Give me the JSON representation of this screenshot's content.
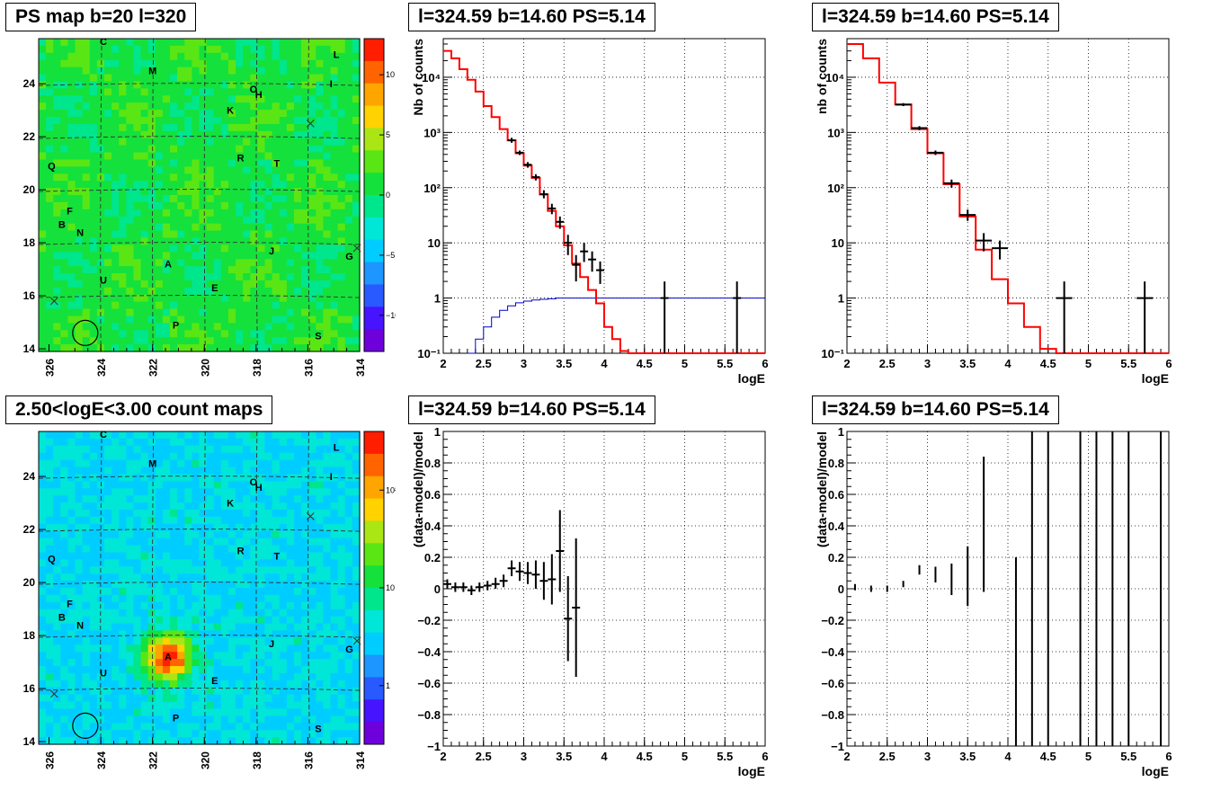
{
  "maps": [
    {
      "title": "PS map b=20 l=320",
      "type": "ps",
      "colorbar_ticks": [
        {
          "v": 10,
          "label": "10"
        },
        {
          "v": 5,
          "label": "5"
        },
        {
          "v": 0,
          "label": "0"
        },
        {
          "v": -5,
          "label": "−5"
        },
        {
          "v": -10,
          "label": "−10"
        }
      ],
      "colorbar_range": [
        -13,
        13
      ]
    },
    {
      "title": "2.50<logE<3.00 count maps",
      "type": "count",
      "colorbar_ticks": [
        {
          "v": 2,
          "label": "10²"
        },
        {
          "v": 1,
          "label": "10"
        },
        {
          "v": 0,
          "label": "1"
        }
      ],
      "colorbar_range": [
        -0.6,
        2.6
      ]
    }
  ],
  "map_axes": {
    "x_ticks": [
      "326",
      "324",
      "322",
      "320",
      "318",
      "316",
      "314"
    ],
    "y_ticks": [
      "24",
      "22",
      "20",
      "18",
      "16",
      "14"
    ]
  },
  "source_labels": [
    {
      "t": "C",
      "l": 323.9,
      "b": 25.6
    },
    {
      "t": "M",
      "l": 322.0,
      "b": 24.5
    },
    {
      "t": "L",
      "l": 314.9,
      "b": 25.1
    },
    {
      "t": "I",
      "l": 315.1,
      "b": 24.0
    },
    {
      "t": "O",
      "l": 318.1,
      "b": 23.8
    },
    {
      "t": "H",
      "l": 317.9,
      "b": 23.6
    },
    {
      "t": "K",
      "l": 319.0,
      "b": 23.0
    },
    {
      "t": "R",
      "l": 318.6,
      "b": 21.2
    },
    {
      "t": "T",
      "l": 317.2,
      "b": 21.0
    },
    {
      "t": "Q",
      "l": 325.9,
      "b": 20.9
    },
    {
      "t": "F",
      "l": 325.2,
      "b": 19.2
    },
    {
      "t": "B",
      "l": 325.5,
      "b": 18.7
    },
    {
      "t": "N",
      "l": 324.8,
      "b": 18.4
    },
    {
      "t": "J",
      "l": 317.4,
      "b": 17.7
    },
    {
      "t": "G",
      "l": 314.4,
      "b": 17.5
    },
    {
      "t": "A",
      "l": 321.4,
      "b": 17.2
    },
    {
      "t": "U",
      "l": 323.9,
      "b": 16.6
    },
    {
      "t": "E",
      "l": 319.6,
      "b": 16.3
    },
    {
      "t": "P",
      "l": 321.1,
      "b": 14.9
    },
    {
      "t": "S",
      "l": 315.6,
      "b": 14.5
    }
  ],
  "crosses": [
    {
      "l": 325.8,
      "b": 15.8
    },
    {
      "l": 315.9,
      "b": 22.5
    },
    {
      "l": 314.1,
      "b": 17.8
    }
  ],
  "circle": {
    "l": 324.6,
    "b": 14.6
  },
  "chart_data": [
    {
      "type": "histogram",
      "title": "l=324.59 b=14.60 PS=5.14",
      "xlabel": "logE",
      "ylabel": "Nb of counts",
      "xlim": [
        2,
        6
      ],
      "ylim": [
        0.1,
        50000
      ],
      "yscale": "log",
      "grid": true,
      "x_ticks": [
        "2",
        "2.5",
        "3",
        "3.5",
        "4",
        "4.5",
        "5",
        "5.5",
        "6"
      ],
      "y_ticks": [
        {
          "v": 0.1,
          "label": "10⁻¹"
        },
        {
          "v": 1,
          "label": "1"
        },
        {
          "v": 10,
          "label": "10"
        },
        {
          "v": 100,
          "label": "10²"
        },
        {
          "v": 1000,
          "label": "10³"
        },
        {
          "v": 10000,
          "label": "10⁴"
        }
      ],
      "model_step": {
        "edges": [
          2.0,
          2.1,
          2.2,
          2.3,
          2.4,
          2.5,
          2.6,
          2.7,
          2.8,
          2.9,
          3.0,
          3.1,
          3.2,
          3.3,
          3.4,
          3.5,
          3.6,
          3.7,
          3.8,
          3.9,
          4.0,
          4.1,
          4.2,
          4.3,
          6.0
        ],
        "values": [
          30000,
          22000,
          14000,
          9000,
          5500,
          3000,
          1900,
          1150,
          720,
          420,
          250,
          150,
          75,
          38,
          20,
          9,
          4.2,
          2.4,
          1.4,
          0.8,
          0.3,
          0.18,
          0.11,
          0.1
        ]
      },
      "blue_step": {
        "edges": [
          2.3,
          2.4,
          2.5,
          2.6,
          2.7,
          2.8,
          2.9,
          3.0,
          3.1,
          3.2,
          3.3,
          3.4,
          6.0
        ],
        "values": [
          0.1,
          0.18,
          0.3,
          0.45,
          0.6,
          0.72,
          0.82,
          0.88,
          0.92,
          0.95,
          0.97,
          1.0
        ]
      },
      "data_points": [
        {
          "x": 2.85,
          "y": 720,
          "lo": 650,
          "hi": 800
        },
        {
          "x": 2.95,
          "y": 430,
          "lo": 390,
          "hi": 470
        },
        {
          "x": 3.05,
          "y": 260,
          "lo": 230,
          "hi": 290
        },
        {
          "x": 3.15,
          "y": 155,
          "lo": 135,
          "hi": 175
        },
        {
          "x": 3.25,
          "y": 76,
          "lo": 64,
          "hi": 90
        },
        {
          "x": 3.35,
          "y": 42,
          "lo": 33,
          "hi": 51
        },
        {
          "x": 3.45,
          "y": 24,
          "lo": 18,
          "hi": 30
        },
        {
          "x": 3.55,
          "y": 10,
          "lo": 6,
          "hi": 14
        },
        {
          "x": 3.65,
          "y": 4,
          "lo": 2,
          "hi": 6
        },
        {
          "x": 3.75,
          "y": 7,
          "lo": 4.5,
          "hi": 10
        },
        {
          "x": 3.85,
          "y": 5,
          "lo": 3,
          "hi": 7
        },
        {
          "x": 3.95,
          "y": 3.2,
          "lo": 1.8,
          "hi": 4.6
        },
        {
          "x": 4.75,
          "y": 1,
          "lo": 0.1,
          "hi": 2
        },
        {
          "x": 5.65,
          "y": 1,
          "lo": 0.1,
          "hi": 2
        }
      ],
      "point_half_width": 0.05
    },
    {
      "type": "histogram",
      "title": "l=324.59 b=14.60 PS=5.14",
      "xlabel": "logE",
      "ylabel": "nb of counts",
      "xlim": [
        2,
        6
      ],
      "ylim": [
        0.1,
        50000
      ],
      "yscale": "log",
      "grid": true,
      "x_ticks": [
        "2",
        "2.5",
        "3",
        "3.5",
        "4",
        "4.5",
        "5",
        "5.5",
        "6"
      ],
      "y_ticks": [
        {
          "v": 0.1,
          "label": "10⁻¹"
        },
        {
          "v": 1,
          "label": "1"
        },
        {
          "v": 10,
          "label": "10"
        },
        {
          "v": 100,
          "label": "10²"
        },
        {
          "v": 1000,
          "label": "10³"
        },
        {
          "v": 10000,
          "label": "10⁴"
        }
      ],
      "model_step": {
        "edges": [
          2.0,
          2.2,
          2.4,
          2.6,
          2.8,
          3.0,
          3.2,
          3.4,
          3.6,
          3.8,
          4.0,
          4.2,
          4.4,
          4.6,
          6.0
        ],
        "values": [
          40000,
          22000,
          8000,
          3200,
          1150,
          420,
          115,
          30,
          7.5,
          2.2,
          0.8,
          0.3,
          0.12,
          0.1
        ]
      },
      "data_points": [
        {
          "x": 2.7,
          "y": 3200,
          "lo": 3000,
          "hi": 3400
        },
        {
          "x": 2.9,
          "y": 1200,
          "lo": 1100,
          "hi": 1300
        },
        {
          "x": 3.1,
          "y": 430,
          "lo": 390,
          "hi": 470
        },
        {
          "x": 3.3,
          "y": 120,
          "lo": 100,
          "hi": 140
        },
        {
          "x": 3.5,
          "y": 32,
          "lo": 25,
          "hi": 40
        },
        {
          "x": 3.7,
          "y": 11,
          "lo": 7,
          "hi": 15
        },
        {
          "x": 3.9,
          "y": 8,
          "lo": 5,
          "hi": 11
        },
        {
          "x": 4.7,
          "y": 1,
          "lo": 0.1,
          "hi": 2
        },
        {
          "x": 5.7,
          "y": 1,
          "lo": 0.1,
          "hi": 2
        }
      ],
      "point_half_width": 0.1
    },
    {
      "type": "scatter",
      "title": "l=324.59 b=14.60 PS=5.14",
      "xlabel": "logE",
      "ylabel": "(data-model)/model",
      "xlim": [
        2,
        6
      ],
      "ylim": [
        -1,
        1
      ],
      "yscale": "linear",
      "grid": true,
      "x_ticks": [
        "2",
        "2.5",
        "3",
        "3.5",
        "4",
        "4.5",
        "5",
        "5.5",
        "6"
      ],
      "y_ticks": [
        {
          "v": 1,
          "label": "1"
        },
        {
          "v": 0.8,
          "label": "0.8"
        },
        {
          "v": 0.6,
          "label": "0.6"
        },
        {
          "v": 0.4,
          "label": "0.4"
        },
        {
          "v": 0.2,
          "label": "0.2"
        },
        {
          "v": 0,
          "label": "0"
        },
        {
          "v": -0.2,
          "label": "−0.2"
        },
        {
          "v": -0.4,
          "label": "−0.4"
        },
        {
          "v": -0.6,
          "label": "−0.6"
        },
        {
          "v": -0.8,
          "label": "−0.8"
        },
        {
          "v": -1,
          "label": "−1"
        }
      ],
      "data_points": [
        {
          "x": 2.05,
          "y": 0.03,
          "lo": 0.0,
          "hi": 0.06
        },
        {
          "x": 2.15,
          "y": 0.01,
          "lo": -0.02,
          "hi": 0.04
        },
        {
          "x": 2.25,
          "y": 0.01,
          "lo": -0.02,
          "hi": 0.04
        },
        {
          "x": 2.35,
          "y": -0.01,
          "lo": -0.04,
          "hi": 0.02
        },
        {
          "x": 2.45,
          "y": 0.01,
          "lo": -0.02,
          "hi": 0.04
        },
        {
          "x": 2.55,
          "y": 0.02,
          "lo": -0.01,
          "hi": 0.05
        },
        {
          "x": 2.65,
          "y": 0.03,
          "lo": 0.0,
          "hi": 0.07
        },
        {
          "x": 2.75,
          "y": 0.05,
          "lo": 0.01,
          "hi": 0.09
        },
        {
          "x": 2.85,
          "y": 0.13,
          "lo": 0.08,
          "hi": 0.18
        },
        {
          "x": 2.95,
          "y": 0.11,
          "lo": 0.05,
          "hi": 0.17
        },
        {
          "x": 3.05,
          "y": 0.1,
          "lo": 0.03,
          "hi": 0.17
        },
        {
          "x": 3.15,
          "y": 0.09,
          "lo": 0.0,
          "hi": 0.18
        },
        {
          "x": 3.25,
          "y": 0.05,
          "lo": -0.07,
          "hi": 0.17
        },
        {
          "x": 3.35,
          "y": 0.06,
          "lo": -0.1,
          "hi": 0.22
        },
        {
          "x": 3.45,
          "y": 0.24,
          "lo": -0.02,
          "hi": 0.5
        },
        {
          "x": 3.55,
          "y": -0.19,
          "lo": -0.46,
          "hi": 0.08
        },
        {
          "x": 3.65,
          "y": -0.12,
          "lo": -0.56,
          "hi": 0.32
        }
      ],
      "point_half_width": 0.05
    },
    {
      "type": "scatter",
      "title": "l=324.59 b=14.60 PS=5.14",
      "xlabel": "logE",
      "ylabel": "(data-model)/model",
      "xlim": [
        2,
        6
      ],
      "ylim": [
        -1,
        1
      ],
      "yscale": "linear",
      "grid": true,
      "x_ticks": [
        "2",
        "2.5",
        "3",
        "3.5",
        "4",
        "4.5",
        "5",
        "5.5",
        "6"
      ],
      "y_ticks": [
        {
          "v": 1,
          "label": "1"
        },
        {
          "v": 0.8,
          "label": "0.8"
        },
        {
          "v": 0.6,
          "label": "0.6"
        },
        {
          "v": 0.4,
          "label": "0.4"
        },
        {
          "v": 0.2,
          "label": "0.2"
        },
        {
          "v": 0,
          "label": "0"
        },
        {
          "v": -0.2,
          "label": "−0.2"
        },
        {
          "v": -0.4,
          "label": "−0.4"
        },
        {
          "v": -0.6,
          "label": "−0.6"
        },
        {
          "v": -0.8,
          "label": "−0.8"
        },
        {
          "v": -1,
          "label": "−1"
        }
      ],
      "data_points": [
        {
          "x": 2.1,
          "y": 0.01,
          "lo": -0.01,
          "hi": 0.03
        },
        {
          "x": 2.3,
          "y": 0.0,
          "lo": -0.02,
          "hi": 0.02
        },
        {
          "x": 2.5,
          "y": 0.0,
          "lo": -0.02,
          "hi": 0.02
        },
        {
          "x": 2.7,
          "y": 0.03,
          "lo": 0.01,
          "hi": 0.05
        },
        {
          "x": 2.9,
          "y": 0.12,
          "lo": 0.09,
          "hi": 0.15
        },
        {
          "x": 3.1,
          "y": 0.09,
          "lo": 0.04,
          "hi": 0.14
        },
        {
          "x": 3.3,
          "y": 0.06,
          "lo": -0.04,
          "hi": 0.16
        },
        {
          "x": 3.5,
          "y": 0.08,
          "lo": -0.11,
          "hi": 0.27
        },
        {
          "x": 3.7,
          "y": 0.41,
          "lo": -0.02,
          "hi": 0.84
        },
        {
          "x": 4.1,
          "y": -1,
          "lo": -1,
          "hi": 0.2
        },
        {
          "x": 4.3,
          "y": 0,
          "lo": -1,
          "hi": 1
        },
        {
          "x": 4.5,
          "y": 0,
          "lo": -1,
          "hi": 1
        },
        {
          "x": 4.9,
          "y": 0,
          "lo": -1,
          "hi": 1
        },
        {
          "x": 5.1,
          "y": 0,
          "lo": -1,
          "hi": 1
        },
        {
          "x": 5.3,
          "y": 0,
          "lo": -1,
          "hi": 1
        },
        {
          "x": 5.5,
          "y": 0,
          "lo": -1,
          "hi": 1
        },
        {
          "x": 5.9,
          "y": 0,
          "lo": -1,
          "hi": 1
        }
      ],
      "point_half_width": 0,
      "hide_bar_center": true
    }
  ]
}
